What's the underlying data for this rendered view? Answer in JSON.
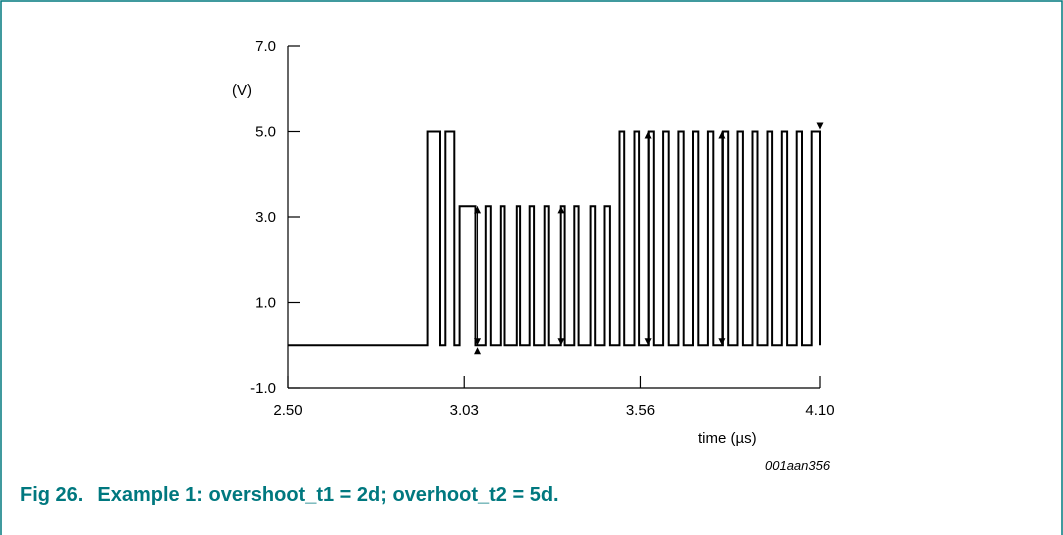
{
  "colors": {
    "frame": "#00787f",
    "caption": "#00787f",
    "axis": "#000000",
    "waveform": "#000000"
  },
  "caption": {
    "number": "Fig 26.",
    "text": "Example 1: overshoot_t1 = 2d; overhoot_t2 = 5d."
  },
  "figure_id": "001aan356",
  "chart_data": {
    "type": "line",
    "title": "",
    "xlabel": "time (µs)",
    "ylabel": "(V)",
    "xlim": [
      2.5,
      4.1
    ],
    "ylim": [
      -1.0,
      7.0
    ],
    "x_ticks": [
      "2.50",
      "3.03",
      "3.56",
      "4.10"
    ],
    "y_ticks": [
      "7.0",
      "5.0",
      "3.0",
      "1.0",
      "-1.0"
    ],
    "grid": false,
    "series": [
      {
        "x": [
          2.5,
          2.92,
          2.92,
          2.957,
          2.957,
          2.973,
          2.973,
          3.0,
          3.0,
          3.016,
          3.016,
          3.064,
          3.064,
          3.095,
          3.095,
          3.11,
          3.11,
          3.14,
          3.14,
          3.151,
          3.151,
          3.188,
          3.188,
          3.198,
          3.198,
          3.227,
          3.227,
          3.24,
          3.24,
          3.272,
          3.272,
          3.284,
          3.284,
          3.32,
          3.32,
          3.332,
          3.332,
          3.361,
          3.361,
          3.374,
          3.374,
          3.41,
          3.41,
          3.424,
          3.424,
          3.452,
          3.452,
          3.468,
          3.468,
          3.497,
          3.497,
          3.511,
          3.511,
          3.542,
          3.542,
          3.556,
          3.556,
          3.585,
          3.585,
          3.6,
          3.6,
          3.628,
          3.628,
          3.645,
          3.645,
          3.674,
          3.674,
          3.69,
          3.69,
          3.718,
          3.718,
          3.734,
          3.734,
          3.763,
          3.763,
          3.779,
          3.779,
          3.808,
          3.808,
          3.824,
          3.824,
          3.852,
          3.852,
          3.868,
          3.868,
          3.897,
          3.897,
          3.912,
          3.912,
          3.942,
          3.942,
          3.956,
          3.956,
          3.985,
          3.985,
          4.001,
          4.001,
          4.03,
          4.03,
          4.046,
          4.046,
          4.075,
          4.075,
          4.1,
          4.1
        ],
        "y": [
          0.0,
          0.0,
          5.0,
          5.0,
          0.0,
          0.0,
          5.0,
          5.0,
          0.0,
          0.0,
          3.25,
          3.25,
          0.0,
          0.0,
          3.25,
          3.25,
          0.0,
          0.0,
          3.25,
          3.25,
          0.0,
          0.0,
          3.25,
          3.25,
          0.0,
          0.0,
          3.25,
          3.25,
          0.0,
          0.0,
          3.25,
          3.25,
          0.0,
          0.0,
          3.25,
          3.25,
          0.0,
          0.0,
          3.25,
          3.25,
          0.0,
          0.0,
          3.25,
          3.25,
          0.0,
          0.0,
          3.25,
          3.25,
          0.0,
          0.0,
          5.0,
          5.0,
          0.0,
          0.0,
          5.0,
          5.0,
          0.0,
          0.0,
          5.0,
          5.0,
          0.0,
          0.0,
          5.0,
          5.0,
          0.0,
          0.0,
          5.0,
          5.0,
          0.0,
          0.0,
          5.0,
          5.0,
          0.0,
          0.0,
          5.0,
          5.0,
          0.0,
          0.0,
          5.0,
          5.0,
          0.0,
          0.0,
          5.0,
          5.0,
          0.0,
          0.0,
          5.0,
          5.0,
          0.0,
          0.0,
          5.0,
          5.0,
          0.0,
          0.0,
          5.0,
          5.0,
          0.0,
          0.0,
          5.0,
          5.0,
          0.0,
          0.0,
          5.0,
          5.0,
          0.0
        ]
      }
    ],
    "annotations": [
      {
        "type": "double-arrow",
        "x": 3.07,
        "y1": 0.0,
        "y2": 3.25
      },
      {
        "type": "double-arrow",
        "x": 3.321,
        "y1": 0.0,
        "y2": 3.25
      },
      {
        "type": "double-arrow",
        "x": 3.583,
        "y1": 0.0,
        "y2": 5.0
      },
      {
        "type": "double-arrow",
        "x": 3.805,
        "y1": 0.0,
        "y2": 5.0
      },
      {
        "type": "arrowhead-up",
        "x": 3.07,
        "y": 0.0
      },
      {
        "type": "arrowhead-down",
        "x": 4.1,
        "y": 5.0
      }
    ]
  }
}
